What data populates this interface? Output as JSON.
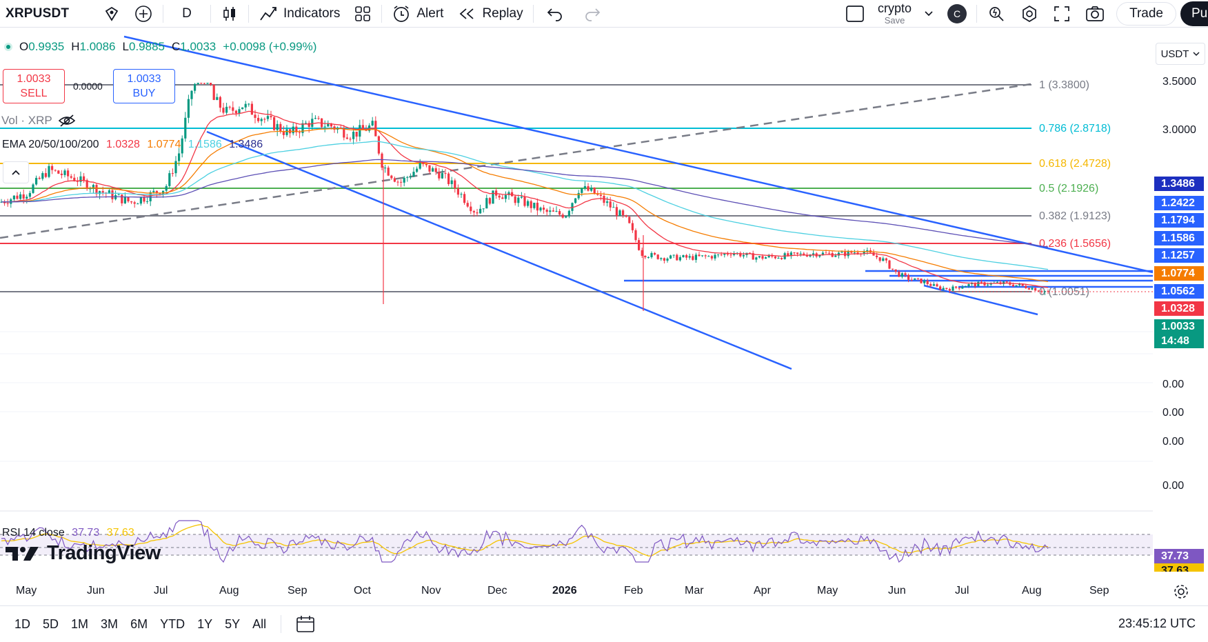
{
  "toolbar": {
    "symbol": "XRPUSDT",
    "interval": "D",
    "indicators_label": "Indicators",
    "alert_label": "Alert",
    "replay_label": "Replay",
    "layout_name": "crypto",
    "layout_sub": "Save",
    "avatar_letter": "C",
    "trade_label": "Trade",
    "publish_label": "Pu"
  },
  "legend": {
    "o_label": "O",
    "o_value": "0.9935",
    "h_label": "H",
    "h_value": "1.0086",
    "l_label": "L",
    "l_value": "0.9885",
    "c_label": "C",
    "c_value": "1.0033",
    "change": "+0.0098 (+0.99%)",
    "sell_price": "1.0033",
    "sell_label": "SELL",
    "spread": "0.0000",
    "buy_price": "1.0033",
    "buy_label": "BUY",
    "vol_label": "Vol · XRP",
    "ema_label": "EMA 20/50/100/200",
    "ema20": "1.0328",
    "ema50": "1.0774",
    "ema100": "1.1586",
    "ema200": "1.3486",
    "rsi_label": "RSI 14 close",
    "rsi_value": "37.73",
    "rsi_ma": "37.63"
  },
  "logo_text": "TradingView",
  "currency": "USDT",
  "price_axis": [
    "3.5000",
    "3.0000",
    "0.00",
    "0.00",
    "0.00",
    "0.00"
  ],
  "price_tags": [
    {
      "value": "1.3486",
      "color": "#1c2fbf"
    },
    {
      "value": "1.2422",
      "color": "#2962ff"
    },
    {
      "value": "1.1794",
      "color": "#2962ff"
    },
    {
      "value": "1.1586",
      "color": "#2962ff"
    },
    {
      "value": "1.1257",
      "color": "#2962ff"
    },
    {
      "value": "1.0774",
      "color": "#f57c00"
    },
    {
      "value": "1.0562",
      "color": "#2962ff"
    },
    {
      "value": "1.0328",
      "color": "#f23645"
    },
    {
      "value": "1.0033",
      "color": "#089981"
    },
    {
      "value": "14:48",
      "color": "#089981"
    }
  ],
  "rsi_tags": [
    {
      "value": "37.73",
      "color": "#7e57c2"
    },
    {
      "value": "37.63",
      "color": "#f5c400"
    }
  ],
  "fib_levels": [
    {
      "label": "1 (3.3800)",
      "color": "#787b86"
    },
    {
      "label": "0.786 (2.8718)",
      "color": "#00bcd4"
    },
    {
      "label": "0.618 (2.4728)",
      "color": "#f5b700"
    },
    {
      "label": "0.5 (2.1926)",
      "color": "#4caf50"
    },
    {
      "label": "0.382 (1.9123)",
      "color": "#787b86"
    },
    {
      "label": "0.236 (1.5656)",
      "color": "#f23645"
    },
    {
      "label": "0 (1.0051)",
      "color": "#787b86"
    }
  ],
  "time_axis": [
    "May",
    "Jun",
    "Jul",
    "Aug",
    "Sep",
    "Oct",
    "Nov",
    "Dec",
    "2026",
    "Feb",
    "Mar",
    "Apr",
    "May",
    "Jun",
    "Jul",
    "Aug",
    "Sep"
  ],
  "ranges": [
    "1D",
    "5D",
    "1M",
    "3M",
    "6M",
    "YTD",
    "1Y",
    "5Y",
    "All"
  ],
  "clock": "23:45:12 UTC",
  "colors": {
    "up": "#089981",
    "down": "#f23645",
    "trend": "#2962ff",
    "ema20": "#f23645",
    "ema50": "#f57c00",
    "ema100": "#4dd0e1",
    "ema200": "#5c4fb5",
    "rsi": "#7e57c2",
    "rsi_ma": "#f5c400"
  }
}
